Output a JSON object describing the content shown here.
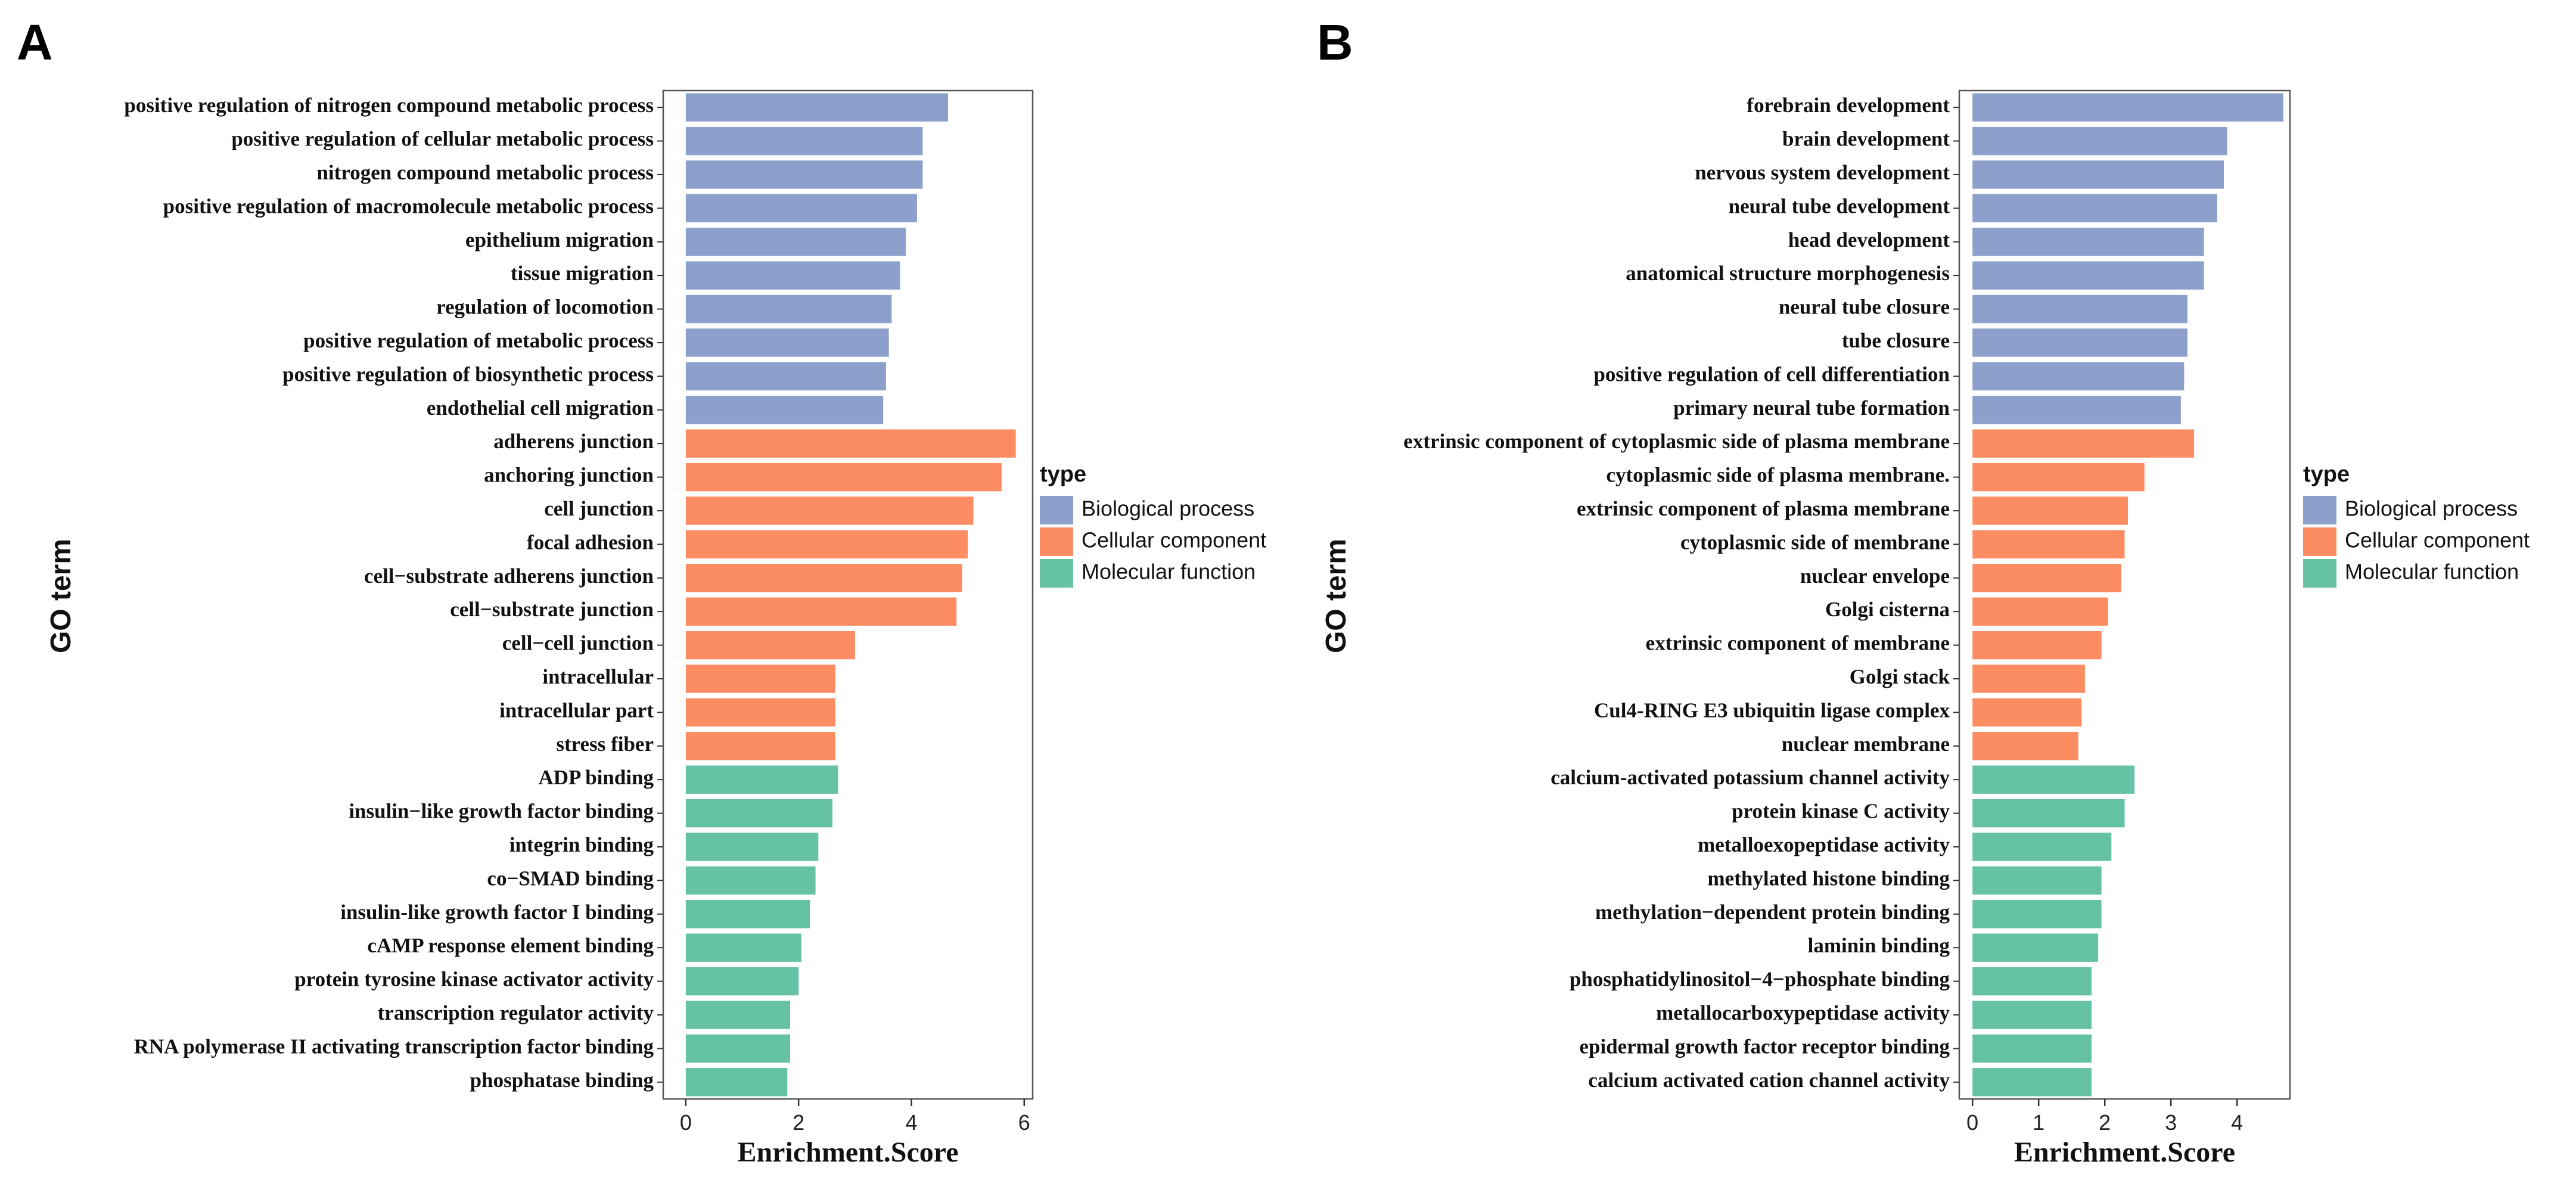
{
  "chart_data": [
    {
      "type": "bar",
      "orientation": "horizontal",
      "panel_label": "A",
      "xlabel": "Enrichment.Score",
      "ylabel": "GO term",
      "legend_title": "type",
      "xlim": [
        -0.4,
        6.15
      ],
      "xticks": [
        0,
        2,
        4,
        6
      ],
      "series": [
        {
          "name": "Biological process",
          "color": "#8DA0CB",
          "categories": [
            "positive regulation of nitrogen compound metabolic process",
            "positive regulation of cellular metabolic process",
            "nitrogen compound metabolic process",
            "positive regulation of macromolecule metabolic process",
            "epithelium migration",
            "tissue migration",
            "regulation of locomotion",
            "positive regulation of metabolic process",
            "positive regulation of biosynthetic process",
            "endothelial cell migration"
          ],
          "values": [
            4.65,
            4.2,
            4.2,
            4.1,
            3.9,
            3.8,
            3.65,
            3.6,
            3.55,
            3.5
          ]
        },
        {
          "name": "Cellular component",
          "color": "#FC8D62",
          "categories": [
            "adherens junction",
            "anchoring junction",
            "cell junction",
            "focal adhesion",
            "cell−substrate adherens junction",
            "cell−substrate junction",
            "cell−cell junction",
            "intracellular",
            "intracellular part",
            "stress fiber"
          ],
          "values": [
            5.85,
            5.6,
            5.1,
            5.0,
            4.9,
            4.8,
            3.0,
            2.65,
            2.65,
            2.65
          ]
        },
        {
          "name": "Molecular function",
          "color": "#66C2A5",
          "categories": [
            "ADP binding",
            "insulin−like growth factor binding",
            "integrin binding",
            "co−SMAD binding",
            "insulin-like growth factor I binding",
            "cAMP response element binding",
            "protein tyrosine kinase activator activity",
            "transcription regulator activity",
            "RNA polymerase II activating transcription factor binding",
            "phosphatase binding"
          ],
          "values": [
            2.7,
            2.6,
            2.35,
            2.3,
            2.2,
            2.05,
            2.0,
            1.85,
            1.85,
            1.8
          ]
        }
      ]
    },
    {
      "type": "bar",
      "orientation": "horizontal",
      "panel_label": "B",
      "xlabel": "Enrichment.Score",
      "ylabel": "GO term",
      "legend_title": "type",
      "xlim": [
        -0.2,
        4.8
      ],
      "xticks": [
        0,
        1,
        2,
        3,
        4
      ],
      "series": [
        {
          "name": "Biological process",
          "color": "#8DA0CB",
          "categories": [
            "forebrain development",
            "brain development",
            "nervous system development",
            "neural tube development",
            "head development",
            "anatomical structure morphogenesis",
            "neural tube closure",
            "tube closure",
            "positive regulation of cell differentiation",
            "primary neural tube formation"
          ],
          "values": [
            4.7,
            3.85,
            3.8,
            3.7,
            3.5,
            3.5,
            3.25,
            3.25,
            3.2,
            3.15
          ]
        },
        {
          "name": "Cellular component",
          "color": "#FC8D62",
          "categories": [
            "extrinsic component of cytoplasmic side of plasma membrane",
            "cytoplasmic side of plasma membrane.",
            "extrinsic component of plasma membrane",
            "cytoplasmic side of membrane",
            "nuclear envelope",
            "Golgi cisterna",
            "extrinsic component of membrane",
            "Golgi stack",
            "Cul4-RING E3 ubiquitin ligase complex",
            "nuclear membrane"
          ],
          "values": [
            3.35,
            2.6,
            2.35,
            2.3,
            2.25,
            2.05,
            1.95,
            1.7,
            1.65,
            1.6
          ]
        },
        {
          "name": "Molecular function",
          "color": "#66C2A5",
          "categories": [
            "calcium-activated potassium channel activity",
            "protein kinase C activity",
            "metalloexopeptidase activity",
            "methylated histone binding",
            "methylation−dependent protein binding",
            "laminin binding",
            "phosphatidylinositol−4−phosphate binding",
            "metallocarboxypeptidase activity",
            "epidermal growth factor receptor binding",
            "calcium activated cation channel activity"
          ],
          "values": [
            2.45,
            2.3,
            2.1,
            1.95,
            1.95,
            1.9,
            1.8,
            1.8,
            1.8,
            1.8
          ]
        }
      ]
    }
  ]
}
